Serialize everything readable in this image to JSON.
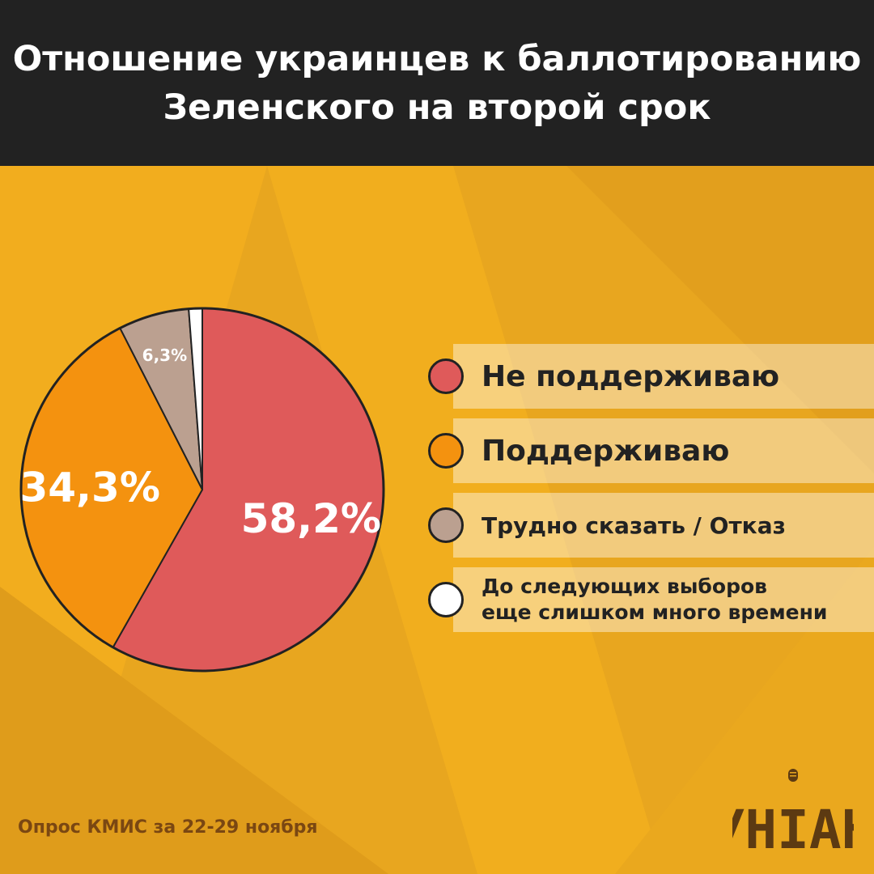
{
  "header": {
    "title": "Отношение украинцев к баллотированию Зеленского на второй срок"
  },
  "chart_data": {
    "type": "pie",
    "title": "Отношение украинцев к баллотированию Зеленского на второй срок",
    "slices": [
      {
        "label": "Не поддерживаю",
        "value": 58.2,
        "display": "58,2%",
        "color": "#df5a5a"
      },
      {
        "label": "Поддерживаю",
        "value": 34.3,
        "display": "34,3%",
        "color": "#f4920f"
      },
      {
        "label": "Трудно сказать / Отказ",
        "value": 6.3,
        "display": "6,3%",
        "color": "#bba090"
      },
      {
        "label": "До следующих выборов\nеще слишком много времени",
        "value": 1.2,
        "display": "",
        "color": "#ffffff"
      }
    ],
    "legend_position": "right"
  },
  "footer": {
    "source": "Опрос КМИС за 22-29 ноября",
    "logo_text": "УНІАН"
  },
  "colors": {
    "background": "#e8a61f",
    "header": "#222222",
    "source_text": "#7a4712",
    "logo": "#5c3a12"
  }
}
